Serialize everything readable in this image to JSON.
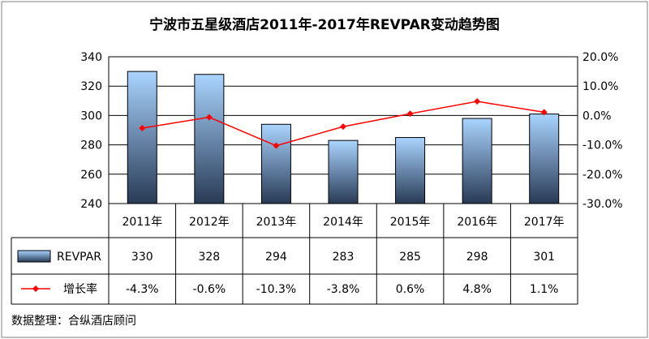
{
  "chart_data": {
    "type": "bar",
    "title": "宁波市五星级酒店2011年-2017年REVPAR变动趋势图",
    "categories": [
      "2011年",
      "2012年",
      "2013年",
      "2014年",
      "2015年",
      "2016年",
      "2017年"
    ],
    "series": [
      {
        "name": "REVPAR",
        "type": "bar",
        "axis": "left",
        "values": [
          330,
          328,
          294,
          283,
          285,
          298,
          301
        ],
        "labels": [
          "330",
          "328",
          "294",
          "283",
          "285",
          "298",
          "301"
        ]
      },
      {
        "name": "增长率",
        "type": "line",
        "axis": "right",
        "values": [
          -4.3,
          -0.6,
          -10.3,
          -3.8,
          0.6,
          4.8,
          1.1
        ],
        "labels": [
          "-4.3%",
          "-0.6%",
          "-10.3%",
          "-3.8%",
          "0.6%",
          "4.8%",
          "1.1%"
        ]
      }
    ],
    "y_left": {
      "ylim": [
        240,
        340
      ],
      "ticks": [
        240,
        260,
        280,
        300,
        320,
        340
      ],
      "tick_labels": [
        "240",
        "260",
        "280",
        "300",
        "320",
        "340"
      ]
    },
    "y_right": {
      "ylim": [
        -30,
        20
      ],
      "ticks": [
        -30,
        -20,
        -10,
        0,
        10,
        20
      ],
      "tick_labels": [
        "-30.0%",
        "-20.0%",
        "-10.0%",
        "0.0%",
        "10.0%",
        "20.0%"
      ]
    },
    "grid": true,
    "legend": "data-table",
    "source": "数据整理：合纵酒店顾问"
  },
  "colors": {
    "bar_top": "#aad4ff",
    "bar_bottom": "#283a55",
    "bar_stroke": "#000000",
    "line": "#ff0000",
    "grid": "#000000",
    "frame": "#7f7f7f"
  }
}
